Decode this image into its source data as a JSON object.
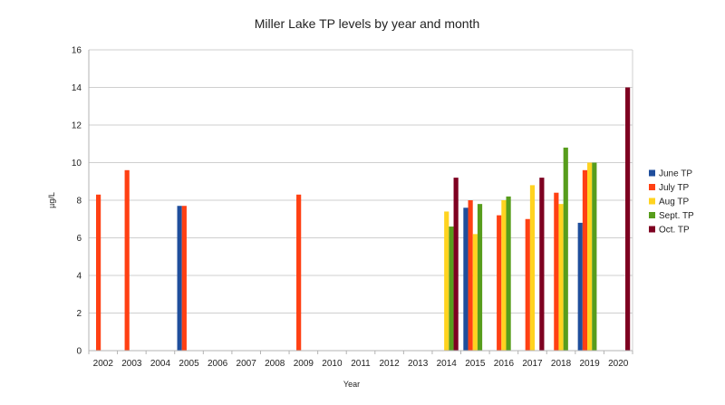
{
  "chart_data": {
    "type": "bar",
    "title": "Miller Lake TP levels by year and month",
    "xlabel": "Year",
    "ylabel": "µg/L",
    "ylim": [
      0,
      16
    ],
    "yticks": [
      0,
      2,
      4,
      6,
      8,
      10,
      12,
      14,
      16
    ],
    "grid": true,
    "legend_position": "right",
    "categories": [
      "2002",
      "2003",
      "2004",
      "2005",
      "2006",
      "2007",
      "2008",
      "2009",
      "2010",
      "2011",
      "2012",
      "2013",
      "2014",
      "2015",
      "2016",
      "2017",
      "2018",
      "2019",
      "2020"
    ],
    "series": [
      {
        "name": "June TP",
        "color": "#1f4e9c",
        "values": [
          null,
          null,
          null,
          7.7,
          null,
          null,
          null,
          null,
          null,
          null,
          null,
          null,
          null,
          7.6,
          null,
          null,
          null,
          6.8,
          null
        ]
      },
      {
        "name": "July TP",
        "color": "#ff4013",
        "values": [
          8.3,
          9.6,
          null,
          7.7,
          null,
          null,
          null,
          8.3,
          null,
          null,
          null,
          null,
          null,
          8.0,
          7.2,
          7.0,
          8.4,
          9.6,
          null
        ]
      },
      {
        "name": "Aug TP",
        "color": "#ffd320",
        "values": [
          null,
          null,
          null,
          null,
          null,
          null,
          null,
          null,
          null,
          null,
          null,
          null,
          7.4,
          6.2,
          8.0,
          8.8,
          7.8,
          10.0,
          null
        ]
      },
      {
        "name": "Sept. TP",
        "color": "#579d1c",
        "values": [
          null,
          null,
          null,
          null,
          null,
          null,
          null,
          null,
          null,
          null,
          null,
          null,
          6.6,
          7.8,
          8.2,
          null,
          10.8,
          10.0,
          null
        ]
      },
      {
        "name": "Oct. TP",
        "color": "#7e0021",
        "values": [
          null,
          null,
          null,
          null,
          null,
          null,
          null,
          null,
          null,
          null,
          null,
          null,
          9.2,
          null,
          null,
          9.2,
          null,
          null,
          14.0
        ]
      }
    ]
  }
}
